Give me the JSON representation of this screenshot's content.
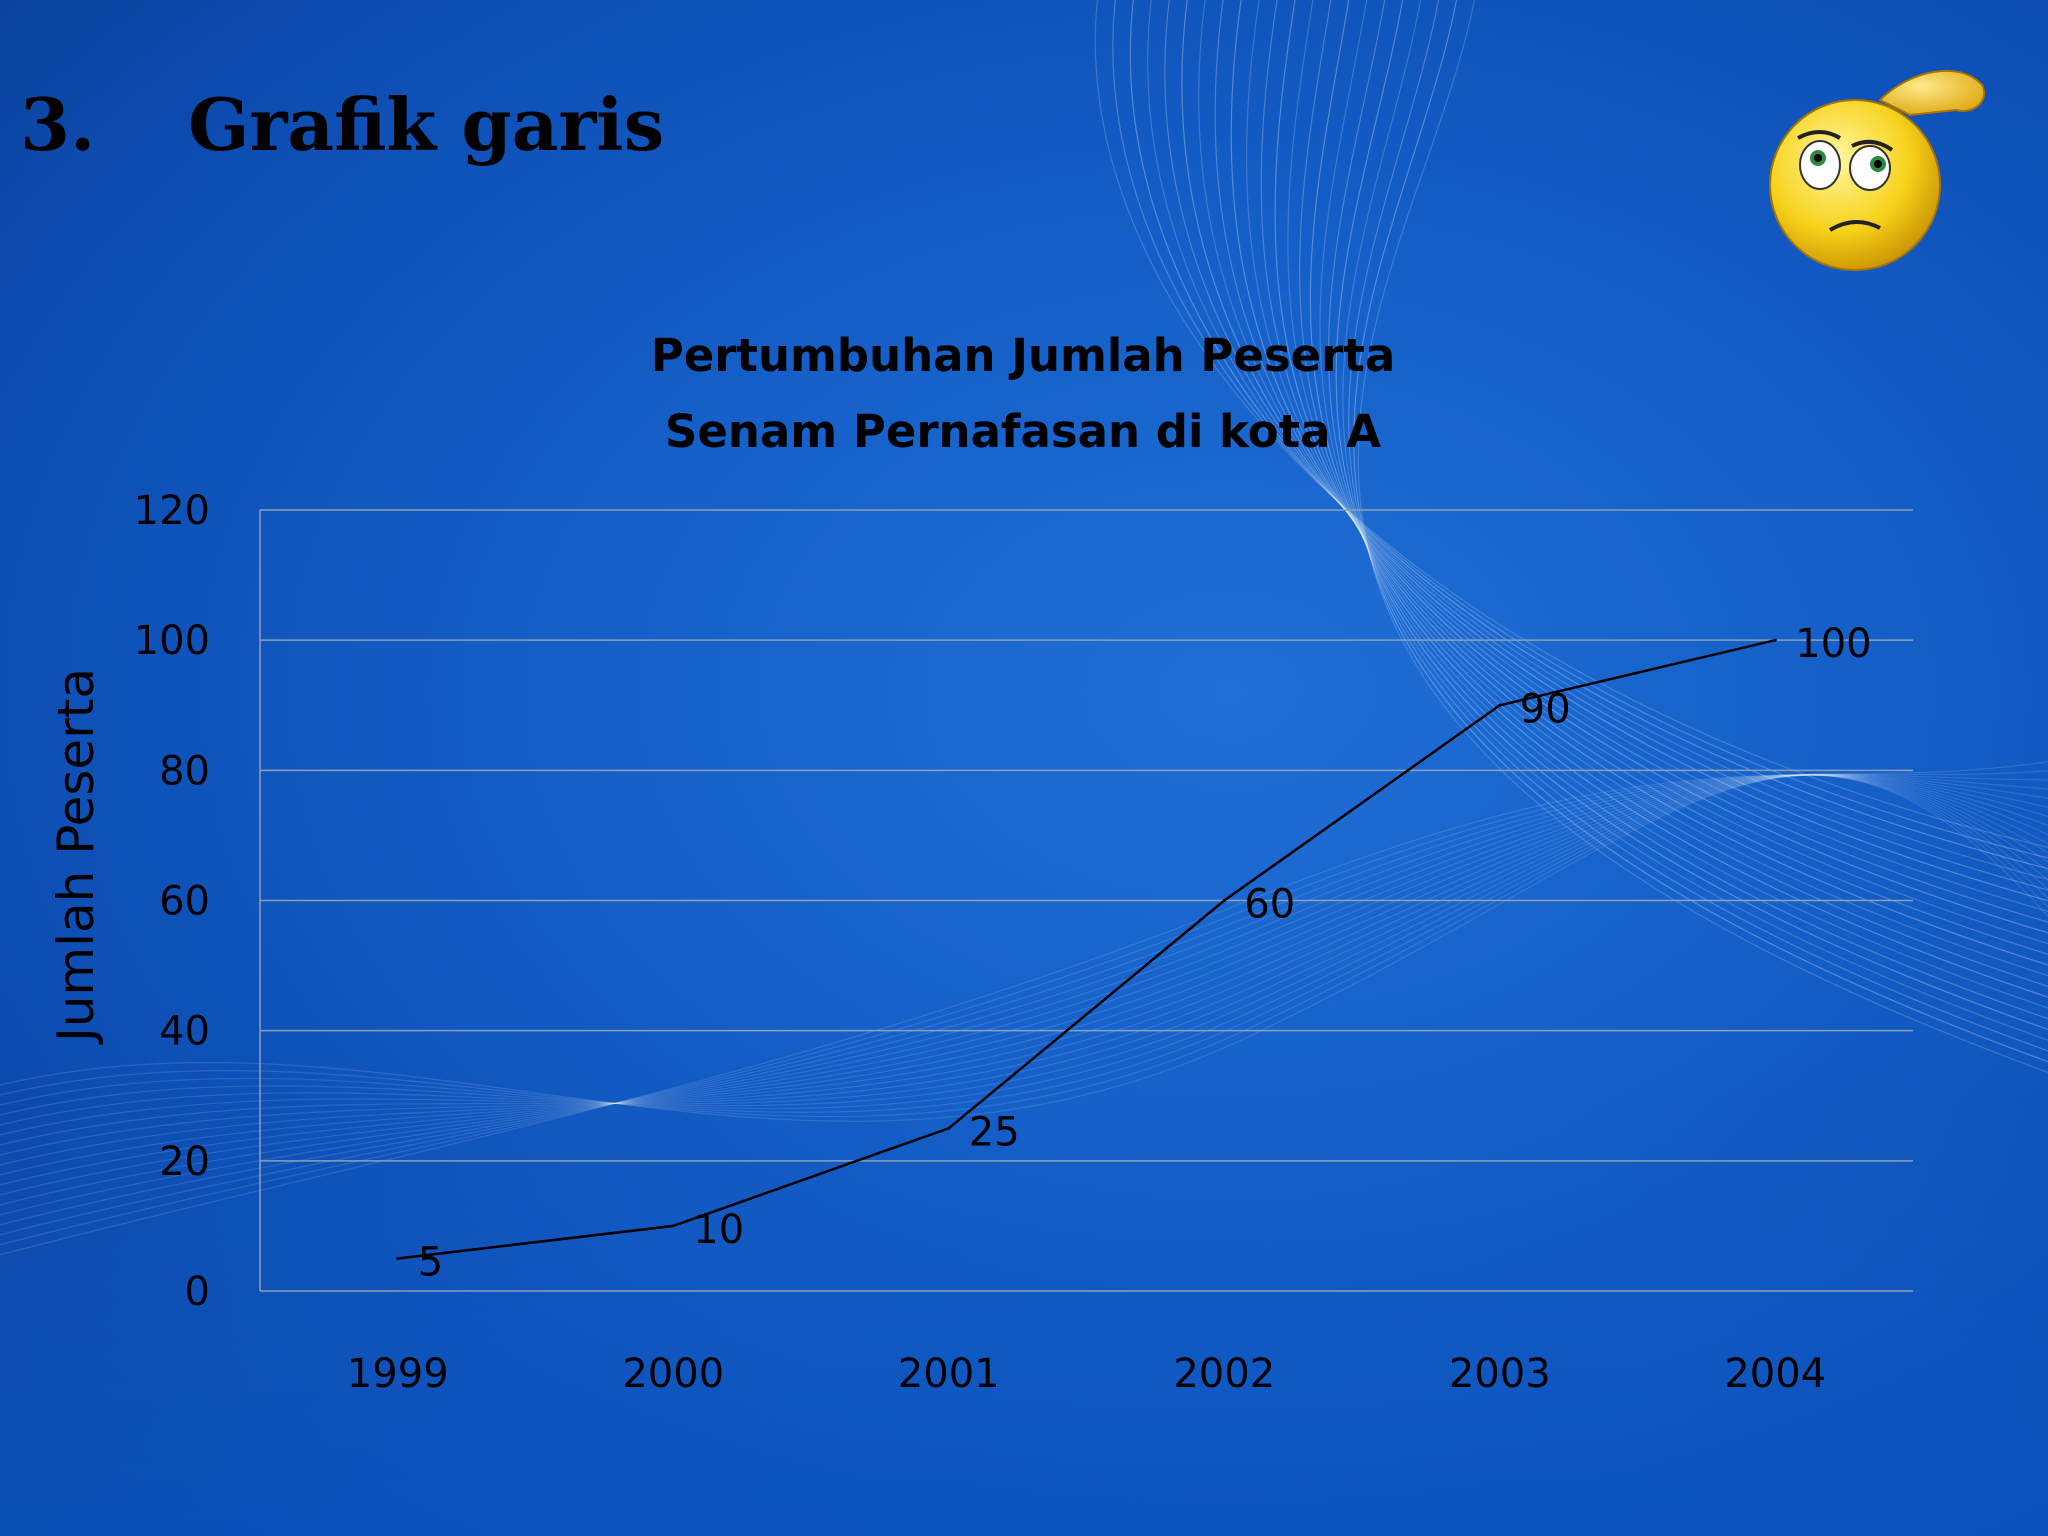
{
  "slide": {
    "number": "3.",
    "heading": "Grafik garis"
  },
  "chart_data": {
    "type": "line",
    "title": [
      "Pertumbuhan Jumlah Peserta",
      "Senam Pernafasan di kota A"
    ],
    "ylabel": "Jumlah Peserta",
    "xlabel": "",
    "categories": [
      "1999",
      "2000",
      "2001",
      "2002",
      "2003",
      "2004"
    ],
    "values": [
      5,
      10,
      25,
      60,
      90,
      100
    ],
    "data_labels": [
      "5",
      "10",
      "25",
      "60",
      "90",
      "100"
    ],
    "ylim": [
      0,
      120
    ],
    "yticks": [
      0,
      20,
      40,
      60,
      80,
      100,
      120
    ],
    "ytick_labels": [
      "0",
      "20",
      "40",
      "60",
      "80",
      "100",
      "120"
    ],
    "grid": true,
    "legend": "none",
    "line_color": "#000000",
    "grid_color": "#8aa0b8"
  },
  "decoration": {
    "icon": "thinking-face-icon"
  }
}
